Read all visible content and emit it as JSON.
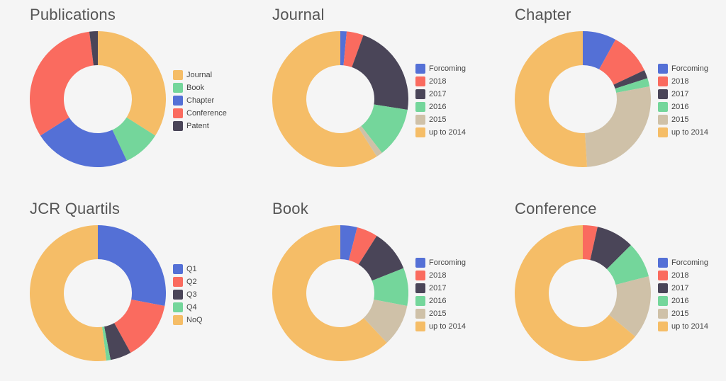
{
  "colors": {
    "blue": "#5470d6",
    "red": "#fa6b5f",
    "dark": "#4a4558",
    "green": "#74d69b",
    "beige": "#cfc1a8",
    "yellow": "#f5bd67"
  },
  "chart_data": [
    {
      "type": "pie",
      "title": "Publications",
      "slices": [
        {
          "label": "Journal",
          "value": 34,
          "color": "#f5bd67"
        },
        {
          "label": "Book",
          "value": 9,
          "color": "#74d69b"
        },
        {
          "label": "Chapter",
          "value": 23,
          "color": "#5470d6"
        },
        {
          "label": "Conference",
          "value": 32,
          "color": "#fa6b5f"
        },
        {
          "label": "Patent",
          "value": 2,
          "color": "#4a4558"
        }
      ],
      "legend": [
        "Journal",
        "Book",
        "Chapter",
        "Conference",
        "Patent"
      ],
      "legend_colors": [
        "#f5bd67",
        "#74d69b",
        "#5470d6",
        "#fa6b5f",
        "#4a4558"
      ]
    },
    {
      "type": "pie",
      "title": "Journal",
      "slices": [
        {
          "label": "Forcoming",
          "value": 1.5,
          "color": "#5470d6"
        },
        {
          "label": "2018",
          "value": 4,
          "color": "#fa6b5f"
        },
        {
          "label": "2017",
          "value": 22,
          "color": "#4a4558"
        },
        {
          "label": "2016",
          "value": 12,
          "color": "#74d69b"
        },
        {
          "label": "2015",
          "value": 1.5,
          "color": "#cfc1a8"
        },
        {
          "label": "up to 2014",
          "value": 59,
          "color": "#f5bd67"
        }
      ],
      "legend": [
        "Forcoming",
        "2018",
        "2017",
        "2016",
        "2015",
        "up to 2014"
      ],
      "legend_colors": [
        "#5470d6",
        "#fa6b5f",
        "#4a4558",
        "#74d69b",
        "#cfc1a8",
        "#f5bd67"
      ]
    },
    {
      "type": "pie",
      "title": "Chapter",
      "slices": [
        {
          "label": "Forcoming",
          "value": 8,
          "color": "#5470d6"
        },
        {
          "label": "2018",
          "value": 10,
          "color": "#fa6b5f"
        },
        {
          "label": "2017",
          "value": 2,
          "color": "#4a4558"
        },
        {
          "label": "2016",
          "value": 2,
          "color": "#74d69b"
        },
        {
          "label": "2015",
          "value": 27,
          "color": "#cfc1a8"
        },
        {
          "label": "up to 2014",
          "value": 51,
          "color": "#f5bd67"
        }
      ],
      "legend": [
        "Forcoming",
        "2018",
        "2017",
        "2016",
        "2015",
        "up to 2014"
      ],
      "legend_colors": [
        "#5470d6",
        "#fa6b5f",
        "#4a4558",
        "#74d69b",
        "#cfc1a8",
        "#f5bd67"
      ]
    },
    {
      "type": "pie",
      "title": "JCR Quartils",
      "slices": [
        {
          "label": "Q1",
          "value": 28,
          "color": "#5470d6"
        },
        {
          "label": "Q2",
          "value": 14,
          "color": "#fa6b5f"
        },
        {
          "label": "Q3",
          "value": 5,
          "color": "#4a4558"
        },
        {
          "label": "Q4",
          "value": 1,
          "color": "#74d69b"
        },
        {
          "label": "NoQ",
          "value": 52,
          "color": "#f5bd67"
        }
      ],
      "legend": [
        "Q1",
        "Q2",
        "Q3",
        "Q4",
        "NoQ"
      ],
      "legend_colors": [
        "#5470d6",
        "#fa6b5f",
        "#4a4558",
        "#74d69b",
        "#f5bd67"
      ]
    },
    {
      "type": "pie",
      "title": "Book",
      "slices": [
        {
          "label": "Forcoming",
          "value": 4,
          "color": "#5470d6"
        },
        {
          "label": "2018",
          "value": 5,
          "color": "#fa6b5f"
        },
        {
          "label": "2017",
          "value": 10,
          "color": "#4a4558"
        },
        {
          "label": "2016",
          "value": 9,
          "color": "#74d69b"
        },
        {
          "label": "2015",
          "value": 10,
          "color": "#cfc1a8"
        },
        {
          "label": "up to 2014",
          "value": 62,
          "color": "#f5bd67"
        }
      ],
      "legend": [
        "Forcoming",
        "2018",
        "2017",
        "2016",
        "2015",
        "up to 2014"
      ],
      "legend_colors": [
        "#5470d6",
        "#fa6b5f",
        "#4a4558",
        "#74d69b",
        "#cfc1a8",
        "#f5bd67"
      ]
    },
    {
      "type": "pie",
      "title": "Conference",
      "slices": [
        {
          "label": "2018",
          "value": 3.5,
          "color": "#fa6b5f"
        },
        {
          "label": "2017",
          "value": 9,
          "color": "#4a4558"
        },
        {
          "label": "2016",
          "value": 8.5,
          "color": "#74d69b"
        },
        {
          "label": "2015",
          "value": 15,
          "color": "#cfc1a8"
        },
        {
          "label": "up to 2014",
          "value": 64,
          "color": "#f5bd67"
        }
      ],
      "legend": [
        "Forcoming",
        "2018",
        "2017",
        "2016",
        "2015",
        "up to 2014"
      ],
      "legend_colors": [
        "#5470d6",
        "#fa6b5f",
        "#4a4558",
        "#74d69b",
        "#cfc1a8",
        "#f5bd67"
      ]
    }
  ]
}
